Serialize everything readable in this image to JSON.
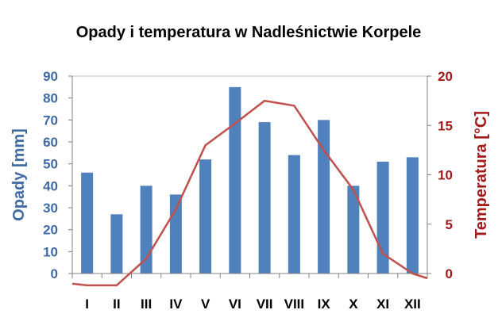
{
  "chart_data": {
    "type": "bar+line",
    "title": "Opady i temperatura w Nadleśnictwie Korpele",
    "categories": [
      "I",
      "II",
      "III",
      "IV",
      "V",
      "VI",
      "VII",
      "VIII",
      "IX",
      "X",
      "XI",
      "XII"
    ],
    "series": [
      {
        "kind": "bar",
        "axis": "left",
        "color": "#4f81bd",
        "values": [
          46,
          27,
          40,
          36,
          52,
          85,
          69,
          54,
          70,
          40,
          51,
          53
        ]
      },
      {
        "kind": "line",
        "axis": "right",
        "color": "#c0504d",
        "values": [
          -1.2,
          -1.2,
          1.5,
          6.5,
          13,
          15.2,
          17.5,
          17,
          12.5,
          8.5,
          2,
          0
        ]
      }
    ],
    "ylabel_left": "Opady [mm]",
    "ylabel_right": "Temperatura [°C]",
    "ylim_left": [
      0,
      90
    ],
    "yticks_left": [
      0,
      10,
      20,
      30,
      40,
      50,
      60,
      70,
      80,
      90
    ],
    "ylim_right": [
      0,
      20
    ],
    "yticks_right": [
      0,
      5,
      10,
      15,
      20
    ],
    "grid": false,
    "legend": "none"
  }
}
